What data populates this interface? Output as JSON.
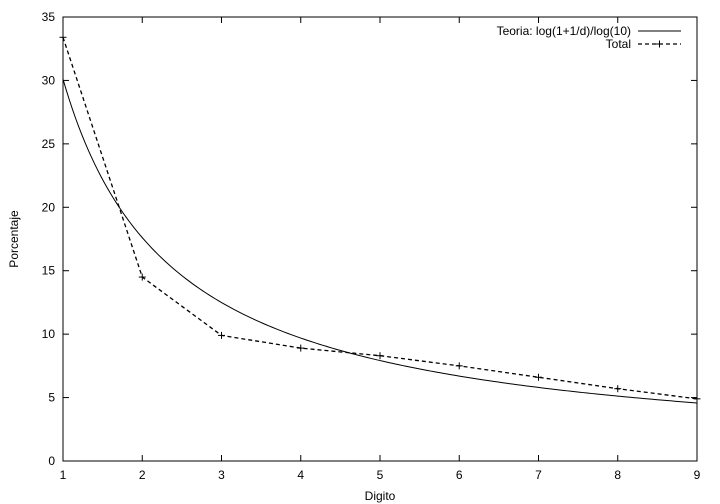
{
  "chart_data": {
    "type": "line",
    "title": "",
    "xlabel": "Digito",
    "ylabel": "Porcentaje",
    "xlim": [
      1,
      9
    ],
    "ylim": [
      0,
      35
    ],
    "x_ticks": [
      "1",
      "2",
      "3",
      "4",
      "5",
      "6",
      "7",
      "8",
      "9"
    ],
    "y_ticks": [
      "0",
      "5",
      "10",
      "15",
      "20",
      "25",
      "30",
      "35"
    ],
    "grid": false,
    "legend_position": "top-right",
    "series": [
      {
        "name": "Teoria: log(1+1/d)/log(10)",
        "style": "solid",
        "marker": "none",
        "color": "#000000",
        "function": "100*log10(1+1/d)"
      },
      {
        "name": "Total",
        "style": "dashed",
        "marker": "plus",
        "color": "#000000",
        "x": [
          1,
          2,
          3,
          4,
          5,
          6,
          7,
          8,
          9
        ],
        "values": [
          33.4,
          14.5,
          9.9,
          8.9,
          8.3,
          7.5,
          6.6,
          5.7,
          4.9
        ]
      }
    ]
  }
}
